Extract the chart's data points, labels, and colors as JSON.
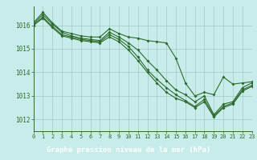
{
  "title": "Graphe pression niveau de la mer (hPa)",
  "plot_bg": "#c8ecea",
  "label_bg": "#3d8c7a",
  "label_fg": "#ffffff",
  "grid_color": "#a0ccc8",
  "line_color": "#2d6a2d",
  "xlim": [
    0,
    23
  ],
  "ylim": [
    1011.5,
    1016.8
  ],
  "xticks": [
    0,
    1,
    2,
    3,
    4,
    5,
    6,
    7,
    8,
    9,
    10,
    11,
    12,
    13,
    14,
    15,
    16,
    17,
    18,
    19,
    20,
    21,
    22,
    23
  ],
  "yticks": [
    1012,
    1013,
    1014,
    1015,
    1016
  ],
  "series": [
    [
      1016.1,
      1016.55,
      1016.1,
      1015.75,
      1015.65,
      1015.55,
      1015.5,
      1015.5,
      1015.85,
      1015.65,
      1015.5,
      1015.45,
      1015.35,
      1015.3,
      1015.25,
      1014.6,
      1013.55,
      1013.0,
      1013.15,
      1013.05,
      1013.8,
      1013.5,
      1013.55,
      1013.6
    ],
    [
      1016.05,
      1016.45,
      1016.05,
      1015.7,
      1015.55,
      1015.45,
      1015.4,
      1015.35,
      1015.7,
      1015.5,
      1015.25,
      1014.95,
      1014.5,
      1014.1,
      1013.65,
      1013.25,
      1013.05,
      1012.75,
      1013.0,
      1012.2,
      1012.65,
      1012.75,
      1013.35,
      1013.55
    ],
    [
      1016.0,
      1016.35,
      1015.95,
      1015.6,
      1015.5,
      1015.4,
      1015.35,
      1015.3,
      1015.6,
      1015.4,
      1015.1,
      1014.65,
      1014.1,
      1013.7,
      1013.35,
      1013.05,
      1012.8,
      1012.55,
      1012.85,
      1012.15,
      1012.55,
      1012.7,
      1013.25,
      1013.45
    ],
    [
      1016.0,
      1016.3,
      1015.9,
      1015.55,
      1015.45,
      1015.35,
      1015.3,
      1015.25,
      1015.5,
      1015.3,
      1014.95,
      1014.5,
      1014.0,
      1013.55,
      1013.15,
      1012.9,
      1012.75,
      1012.5,
      1012.75,
      1012.1,
      1012.5,
      1012.65,
      1013.2,
      1013.4
    ]
  ]
}
